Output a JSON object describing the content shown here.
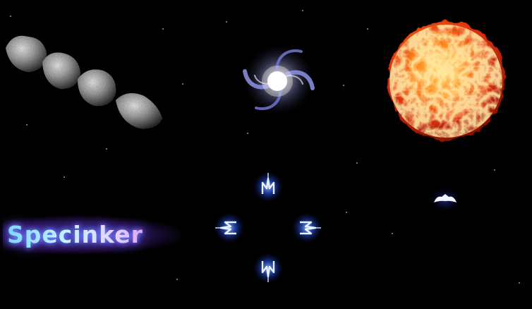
{
  "game": {
    "logo_text": "Specinker",
    "sprites": {
      "asteroid_chain": "asteroid-chain-icon",
      "galaxy": "spiral-galaxy-icon",
      "sun": "fiery-sun-icon",
      "player_ships": "player-ship-icon",
      "enemy_ship": "enemy-ship-icon"
    }
  },
  "colors": {
    "background": "#000000",
    "ship_glow": "#2a5cff",
    "logo_start": "#7ad8ff",
    "logo_end": "#d060ff",
    "sun_core": "#ffb030",
    "sun_edge": "#c01808"
  }
}
